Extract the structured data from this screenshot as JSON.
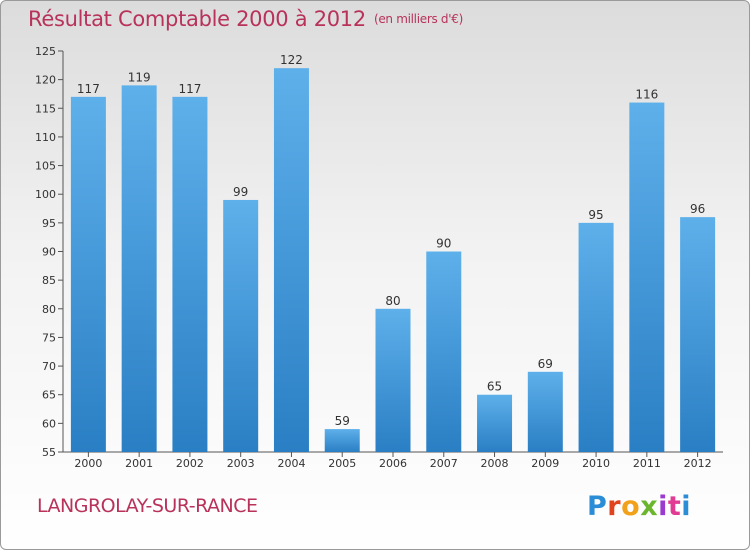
{
  "header": {
    "title": "Résultat Comptable 2000 à 2012",
    "unit": "(en milliers d'€)"
  },
  "footer": {
    "commune": "LANGROLAY-SUR-RANCE",
    "logo_text": "Proxiti"
  },
  "colors": {
    "bar_top": "#5eb0ea",
    "bar_bottom": "#2a7fc4",
    "title": "#b8325a",
    "axis": "#555555"
  },
  "chart_data": {
    "type": "bar",
    "title": "Résultat Comptable 2000 à 2012",
    "subtitle": "(en milliers d'€)",
    "xlabel": "",
    "ylabel": "",
    "categories": [
      "2000",
      "2001",
      "2002",
      "2003",
      "2004",
      "2005",
      "2006",
      "2007",
      "2008",
      "2009",
      "2010",
      "2011",
      "2012"
    ],
    "values": [
      117,
      119,
      117,
      99,
      122,
      59,
      80,
      90,
      65,
      69,
      95,
      116,
      96
    ],
    "ylim": [
      55,
      125
    ],
    "yticks": [
      55,
      60,
      65,
      70,
      75,
      80,
      85,
      90,
      95,
      100,
      105,
      110,
      115,
      120,
      125
    ],
    "grid": false,
    "data_labels": true
  }
}
